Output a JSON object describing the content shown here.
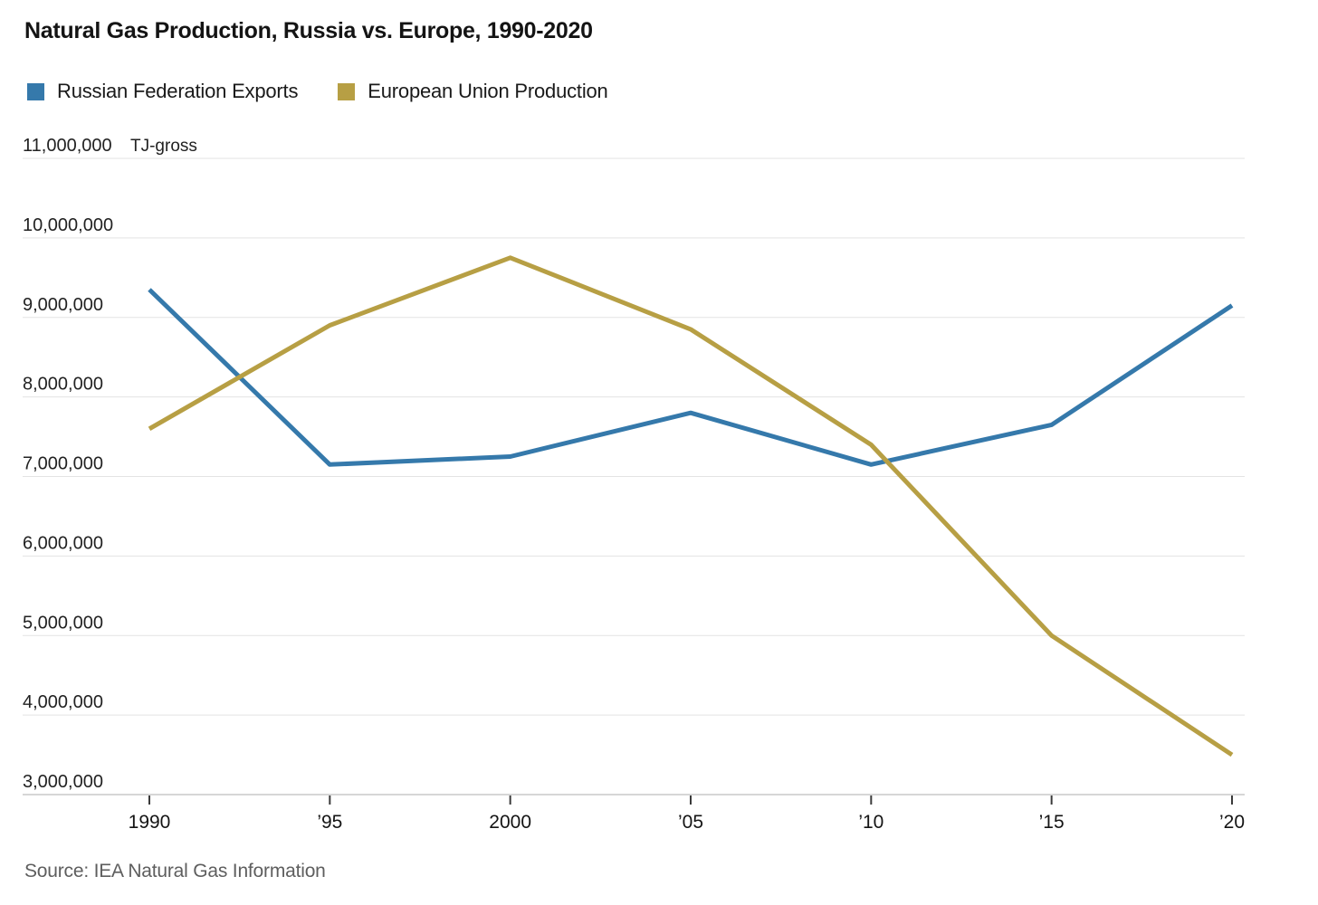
{
  "chart_data": {
    "type": "line",
    "title": "Natural Gas Production, Russia vs. Europe, 1990-2020",
    "unit_label": "TJ-gross",
    "source": "Source: IEA Natural Gas Information",
    "x": [
      1990,
      1995,
      2000,
      2005,
      2010,
      2015,
      2020
    ],
    "x_tick_labels": [
      "1990",
      "’95",
      "2000",
      "’05",
      "’10",
      "’15",
      "’20"
    ],
    "y_tick_labels": [
      "11,000,000",
      "10,000,000",
      "9,000,000",
      "8,000,000",
      "7,000,000",
      "6,000,000",
      "5,000,000",
      "4,000,000",
      "3,000,000"
    ],
    "y_tick_values": [
      11000000,
      10000000,
      9000000,
      8000000,
      7000000,
      6000000,
      5000000,
      4000000,
      3000000
    ],
    "ylim": [
      3000000,
      11000000
    ],
    "grid": "horizontal",
    "legend_position": "top-left",
    "series": [
      {
        "name": "Russian Federation Exports",
        "color": "#3579ab",
        "values": [
          9350000,
          7150000,
          7250000,
          7800000,
          7150000,
          7650000,
          9150000
        ]
      },
      {
        "name": "European Union Production",
        "color": "#b79f44",
        "values": [
          7600000,
          8900000,
          9750000,
          8850000,
          7400000,
          5000000,
          3500000
        ]
      }
    ],
    "colors": {
      "gridline": "#e3e3e3",
      "axis_line": "#c9c9c9",
      "tick": "#3a3a3a",
      "axis_text": "#222222",
      "title_text": "#141414",
      "source_text": "#5e5e5e"
    }
  }
}
